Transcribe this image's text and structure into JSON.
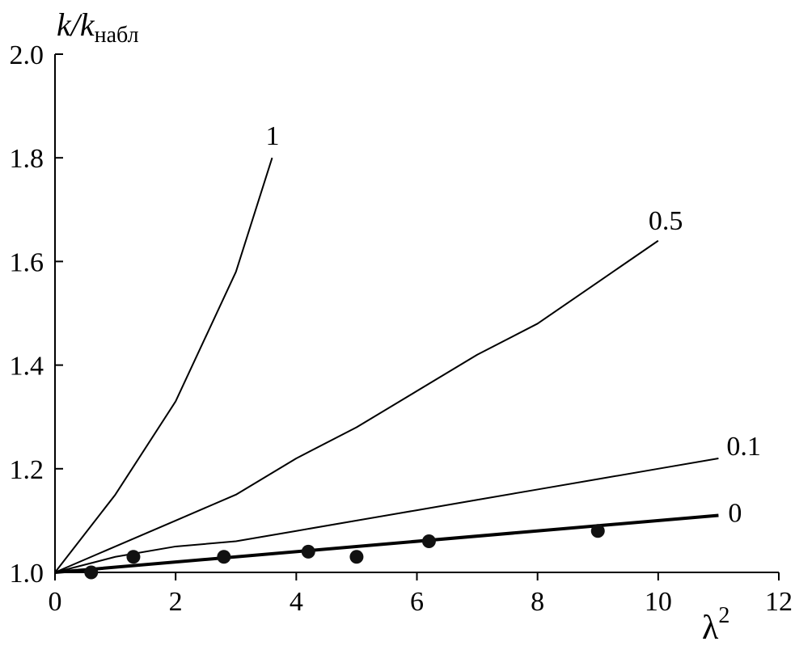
{
  "chart_data": {
    "type": "line",
    "ylabel": {
      "main": "k/k",
      "sub": "набл"
    },
    "xlabel": {
      "main": "λ",
      "sup": "2"
    },
    "xlim": [
      0,
      12
    ],
    "ylim": [
      1.0,
      2.0
    ],
    "x_ticks": [
      "0",
      "2",
      "4",
      "6",
      "8",
      "10",
      "12"
    ],
    "y_ticks": [
      "1.0",
      "1.2",
      "1.4",
      "1.6",
      "1.8",
      "2.0"
    ],
    "grid": false,
    "series": [
      {
        "name": "1",
        "points": [
          [
            0,
            1.0
          ],
          [
            1,
            1.15
          ],
          [
            2,
            1.33
          ],
          [
            3,
            1.58
          ],
          [
            3.6,
            1.8
          ]
        ]
      },
      {
        "name": "0.5",
        "points": [
          [
            0,
            1.0
          ],
          [
            1,
            1.05
          ],
          [
            2,
            1.1
          ],
          [
            3,
            1.15
          ],
          [
            4,
            1.22
          ],
          [
            5,
            1.28
          ],
          [
            6,
            1.35
          ],
          [
            7,
            1.42
          ],
          [
            8,
            1.48
          ],
          [
            9,
            1.56
          ],
          [
            10,
            1.64
          ]
        ]
      },
      {
        "name": "0.1",
        "points": [
          [
            0,
            1.0
          ],
          [
            1,
            1.03
          ],
          [
            2,
            1.05
          ],
          [
            3,
            1.06
          ],
          [
            4,
            1.08
          ],
          [
            5,
            1.1
          ],
          [
            6,
            1.12
          ],
          [
            7,
            1.14
          ],
          [
            8,
            1.16
          ],
          [
            9,
            1.18
          ],
          [
            10,
            1.2
          ],
          [
            11,
            1.22
          ]
        ]
      },
      {
        "name": "0",
        "bold": true,
        "points": [
          [
            0,
            1.0
          ],
          [
            11,
            1.11
          ]
        ]
      }
    ],
    "observed_points": [
      [
        0.6,
        1.0
      ],
      [
        1.3,
        1.03
      ],
      [
        2.8,
        1.03
      ],
      [
        4.2,
        1.04
      ],
      [
        5.0,
        1.03
      ],
      [
        6.2,
        1.06
      ],
      [
        9.0,
        1.08
      ]
    ]
  }
}
